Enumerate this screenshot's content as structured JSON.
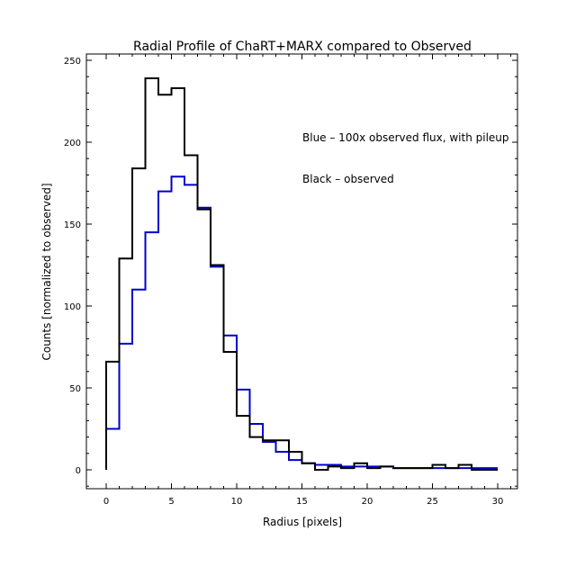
{
  "chart_data": {
    "type": "line",
    "step": true,
    "title": "Radial Profile of ChaRT+MARX compared to Observed",
    "xlabel": "Radius [pixels]",
    "ylabel": "Counts [normalized to observed]",
    "xlim": [
      -1.5,
      31.5
    ],
    "ylim": [
      -12,
      253
    ],
    "xticks": [
      0,
      5,
      10,
      15,
      20,
      25,
      30
    ],
    "yticks": [
      0,
      50,
      100,
      150,
      200,
      250
    ],
    "grid": false,
    "bin_edges_start": [
      0,
      1,
      2,
      3,
      4,
      5,
      6,
      7,
      8,
      9,
      10,
      11,
      12,
      13,
      14,
      15,
      16,
      17,
      18,
      19,
      20,
      21,
      22,
      23,
      24,
      25,
      26,
      27,
      28,
      29
    ],
    "series": [
      {
        "name": "Black – observed",
        "color": "#000000",
        "values": [
          66,
          129,
          184,
          239,
          229,
          233,
          192,
          159,
          125,
          72,
          33,
          20,
          18,
          18,
          11,
          4,
          0,
          2,
          1,
          4,
          1,
          2,
          1,
          1,
          1,
          3,
          1,
          3,
          0,
          0
        ]
      },
      {
        "name": "Blue – 100x observed flux, with pileup",
        "color": "#0000cc",
        "values": [
          25,
          77,
          110,
          145,
          170,
          179,
          174,
          160,
          124,
          82,
          49,
          28,
          17,
          11,
          6,
          4,
          3,
          3,
          2,
          2,
          2,
          2,
          1,
          1,
          1,
          1,
          1,
          1,
          1,
          1
        ]
      }
    ],
    "annotations": [
      "Blue – 100x observed flux, with pileup",
      "Black – observed"
    ]
  }
}
